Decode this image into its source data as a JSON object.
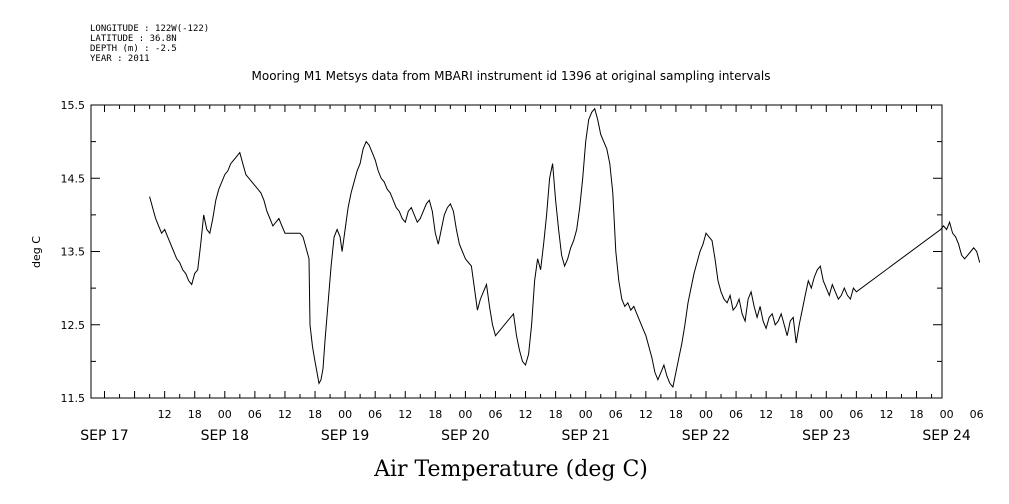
{
  "header": {
    "longitude": "LONGITUDE : 122W(-122)",
    "latitude": "LATITUDE : 36.8N",
    "depth": "DEPTH (m) : -2.5",
    "year": "YEAR : 2011"
  },
  "chart_data": {
    "type": "line",
    "title": "Mooring M1 Metsys data from MBARI instrument id 1396 at original sampling intervals",
    "xlabel": "Air Temperature (deg C)",
    "ylabel": "deg C",
    "ylim": [
      11.5,
      15.5
    ],
    "yticks": [
      11.5,
      12.5,
      13.5,
      14.5,
      15.5
    ],
    "yticks_minor": [
      12.0,
      13.0,
      14.0,
      15.0
    ],
    "x_unit": "hours since SEP 17 00:00 (2011)",
    "xlim": [
      -9,
      175
    ],
    "hour_ticks": [
      {
        "h": 12,
        "label": "12"
      },
      {
        "h": 18,
        "label": "18"
      },
      {
        "h": 24,
        "label": "00"
      },
      {
        "h": 30,
        "label": "06"
      },
      {
        "h": 36,
        "label": "12"
      },
      {
        "h": 42,
        "label": "18"
      },
      {
        "h": 48,
        "label": "00"
      },
      {
        "h": 54,
        "label": "06"
      },
      {
        "h": 60,
        "label": "12"
      },
      {
        "h": 66,
        "label": "18"
      },
      {
        "h": 72,
        "label": "00"
      },
      {
        "h": 78,
        "label": "06"
      },
      {
        "h": 84,
        "label": "12"
      },
      {
        "h": 90,
        "label": "18"
      },
      {
        "h": 96,
        "label": "00"
      },
      {
        "h": 102,
        "label": "06"
      },
      {
        "h": 108,
        "label": "12"
      },
      {
        "h": 114,
        "label": "18"
      },
      {
        "h": 120,
        "label": "00"
      },
      {
        "h": 126,
        "label": "06"
      },
      {
        "h": 132,
        "label": "12"
      },
      {
        "h": 138,
        "label": "18"
      },
      {
        "h": 144,
        "label": "00"
      },
      {
        "h": 150,
        "label": "06"
      },
      {
        "h": 156,
        "label": "12"
      },
      {
        "h": 162,
        "label": "18"
      },
      {
        "h": 168,
        "label": "00"
      },
      {
        "h": 174,
        "label": "06"
      }
    ],
    "date_labels": [
      {
        "h": 0,
        "label": "SEP 17"
      },
      {
        "h": 24,
        "label": "SEP 18"
      },
      {
        "h": 48,
        "label": "SEP 19"
      },
      {
        "h": 72,
        "label": "SEP 20"
      },
      {
        "h": 96,
        "label": "SEP 21"
      },
      {
        "h": 120,
        "label": "SEP 22"
      },
      {
        "h": 144,
        "label": "SEP 23"
      },
      {
        "h": 168,
        "label": "SEP 24"
      }
    ],
    "series": [
      {
        "points": [
          [
            9.0,
            14.25
          ],
          [
            9.6,
            14.1
          ],
          [
            10.2,
            13.95
          ],
          [
            10.8,
            13.85
          ],
          [
            11.4,
            13.75
          ],
          [
            12.0,
            13.8
          ],
          [
            12.6,
            13.7
          ],
          [
            13.2,
            13.6
          ],
          [
            13.8,
            13.5
          ],
          [
            14.4,
            13.4
          ],
          [
            15.0,
            13.35
          ],
          [
            15.6,
            13.25
          ],
          [
            16.2,
            13.2
          ],
          [
            16.8,
            13.1
          ],
          [
            17.4,
            13.05
          ],
          [
            18.0,
            13.2
          ],
          [
            18.6,
            13.25
          ],
          [
            19.2,
            13.6
          ],
          [
            19.8,
            14.0
          ],
          [
            20.4,
            13.8
          ],
          [
            21.0,
            13.75
          ],
          [
            21.6,
            13.95
          ],
          [
            22.2,
            14.2
          ],
          [
            22.8,
            14.35
          ],
          [
            23.4,
            14.45
          ],
          [
            24.0,
            14.55
          ],
          [
            24.6,
            14.6
          ],
          [
            25.2,
            14.7
          ],
          [
            25.8,
            14.75
          ],
          [
            26.4,
            14.8
          ],
          [
            27.0,
            14.85
          ],
          [
            27.6,
            14.7
          ],
          [
            28.2,
            14.55
          ],
          [
            28.8,
            14.5
          ],
          [
            29.4,
            14.45
          ],
          [
            30.0,
            14.4
          ],
          [
            30.6,
            14.35
          ],
          [
            31.2,
            14.3
          ],
          [
            31.8,
            14.2
          ],
          [
            32.4,
            14.05
          ],
          [
            33.0,
            13.95
          ],
          [
            33.6,
            13.85
          ],
          [
            34.2,
            13.9
          ],
          [
            34.8,
            13.95
          ],
          [
            35.4,
            13.85
          ],
          [
            36.0,
            13.75
          ],
          [
            39.0,
            13.75
          ],
          [
            39.6,
            13.7
          ],
          [
            40.2,
            13.55
          ],
          [
            40.8,
            13.4
          ],
          [
            41.0,
            12.5
          ],
          [
            41.5,
            12.2
          ],
          [
            42.0,
            12.0
          ],
          [
            42.4,
            11.85
          ],
          [
            42.8,
            11.7
          ],
          [
            43.2,
            11.75
          ],
          [
            43.6,
            11.9
          ],
          [
            44.0,
            12.3
          ],
          [
            44.6,
            12.8
          ],
          [
            45.2,
            13.3
          ],
          [
            45.8,
            13.7
          ],
          [
            46.4,
            13.8
          ],
          [
            47.0,
            13.7
          ],
          [
            47.4,
            13.5
          ],
          [
            48.0,
            13.8
          ],
          [
            48.6,
            14.1
          ],
          [
            49.2,
            14.3
          ],
          [
            49.8,
            14.45
          ],
          [
            50.4,
            14.6
          ],
          [
            51.0,
            14.7
          ],
          [
            51.6,
            14.9
          ],
          [
            52.2,
            15.0
          ],
          [
            52.8,
            14.95
          ],
          [
            53.4,
            14.85
          ],
          [
            54.0,
            14.75
          ],
          [
            54.6,
            14.6
          ],
          [
            55.2,
            14.5
          ],
          [
            55.8,
            14.45
          ],
          [
            56.4,
            14.35
          ],
          [
            57.0,
            14.3
          ],
          [
            57.6,
            14.2
          ],
          [
            58.2,
            14.1
          ],
          [
            58.8,
            14.05
          ],
          [
            59.4,
            13.95
          ],
          [
            60.0,
            13.9
          ],
          [
            60.6,
            14.05
          ],
          [
            61.2,
            14.1
          ],
          [
            61.8,
            14.0
          ],
          [
            62.4,
            13.9
          ],
          [
            63.0,
            13.95
          ],
          [
            63.6,
            14.05
          ],
          [
            64.2,
            14.15
          ],
          [
            64.8,
            14.2
          ],
          [
            65.4,
            14.05
          ],
          [
            66.0,
            13.75
          ],
          [
            66.6,
            13.6
          ],
          [
            67.2,
            13.8
          ],
          [
            67.8,
            14.0
          ],
          [
            68.4,
            14.1
          ],
          [
            69.0,
            14.15
          ],
          [
            69.6,
            14.05
          ],
          [
            70.2,
            13.8
          ],
          [
            70.8,
            13.6
          ],
          [
            71.4,
            13.5
          ],
          [
            72.0,
            13.4
          ],
          [
            72.6,
            13.35
          ],
          [
            73.2,
            13.3
          ],
          [
            73.8,
            13.0
          ],
          [
            74.4,
            12.7
          ],
          [
            75.0,
            12.85
          ],
          [
            75.6,
            12.95
          ],
          [
            76.2,
            13.05
          ],
          [
            76.8,
            12.75
          ],
          [
            77.4,
            12.5
          ],
          [
            78.0,
            12.35
          ],
          [
            81.6,
            12.65
          ],
          [
            82.2,
            12.35
          ],
          [
            82.8,
            12.15
          ],
          [
            83.4,
            12.0
          ],
          [
            84.0,
            11.95
          ],
          [
            84.6,
            12.1
          ],
          [
            85.2,
            12.5
          ],
          [
            85.8,
            13.1
          ],
          [
            86.4,
            13.4
          ],
          [
            87.0,
            13.25
          ],
          [
            87.6,
            13.6
          ],
          [
            88.2,
            14.0
          ],
          [
            88.8,
            14.5
          ],
          [
            89.4,
            14.7
          ],
          [
            90.0,
            14.2
          ],
          [
            90.6,
            13.8
          ],
          [
            91.2,
            13.45
          ],
          [
            91.8,
            13.3
          ],
          [
            92.4,
            13.4
          ],
          [
            93.0,
            13.55
          ],
          [
            93.6,
            13.65
          ],
          [
            94.2,
            13.8
          ],
          [
            94.8,
            14.1
          ],
          [
            95.4,
            14.5
          ],
          [
            96.0,
            15.0
          ],
          [
            96.6,
            15.3
          ],
          [
            97.2,
            15.4
          ],
          [
            97.8,
            15.45
          ],
          [
            98.4,
            15.3
          ],
          [
            99.0,
            15.1
          ],
          [
            99.6,
            15.0
          ],
          [
            100.2,
            14.9
          ],
          [
            100.8,
            14.7
          ],
          [
            101.4,
            14.3
          ],
          [
            102.0,
            13.5
          ],
          [
            102.6,
            13.1
          ],
          [
            103.2,
            12.85
          ],
          [
            103.8,
            12.75
          ],
          [
            104.4,
            12.8
          ],
          [
            105.0,
            12.7
          ],
          [
            105.6,
            12.75
          ],
          [
            106.2,
            12.65
          ],
          [
            106.8,
            12.55
          ],
          [
            107.4,
            12.45
          ],
          [
            108.0,
            12.35
          ],
          [
            108.6,
            12.2
          ],
          [
            109.2,
            12.05
          ],
          [
            109.8,
            11.85
          ],
          [
            110.4,
            11.75
          ],
          [
            111.0,
            11.85
          ],
          [
            111.6,
            11.95
          ],
          [
            112.2,
            11.8
          ],
          [
            112.8,
            11.7
          ],
          [
            113.4,
            11.65
          ],
          [
            114.0,
            11.85
          ],
          [
            114.6,
            12.05
          ],
          [
            115.2,
            12.25
          ],
          [
            115.8,
            12.5
          ],
          [
            116.4,
            12.8
          ],
          [
            117.0,
            13.0
          ],
          [
            117.6,
            13.2
          ],
          [
            118.2,
            13.35
          ],
          [
            118.8,
            13.5
          ],
          [
            119.4,
            13.6
          ],
          [
            120.0,
            13.75
          ],
          [
            120.6,
            13.7
          ],
          [
            121.2,
            13.65
          ],
          [
            121.8,
            13.4
          ],
          [
            122.4,
            13.1
          ],
          [
            123.0,
            12.95
          ],
          [
            123.6,
            12.85
          ],
          [
            124.2,
            12.8
          ],
          [
            124.8,
            12.9
          ],
          [
            125.4,
            12.7
          ],
          [
            126.0,
            12.75
          ],
          [
            126.6,
            12.85
          ],
          [
            127.2,
            12.65
          ],
          [
            127.8,
            12.55
          ],
          [
            128.4,
            12.85
          ],
          [
            129.0,
            12.95
          ],
          [
            129.6,
            12.75
          ],
          [
            130.2,
            12.6
          ],
          [
            130.8,
            12.75
          ],
          [
            131.4,
            12.55
          ],
          [
            132.0,
            12.45
          ],
          [
            132.6,
            12.6
          ],
          [
            133.2,
            12.65
          ],
          [
            133.8,
            12.5
          ],
          [
            134.4,
            12.55
          ],
          [
            135.0,
            12.65
          ],
          [
            135.6,
            12.5
          ],
          [
            136.2,
            12.35
          ],
          [
            136.8,
            12.55
          ],
          [
            137.4,
            12.6
          ],
          [
            138.0,
            12.25
          ],
          [
            138.6,
            12.5
          ],
          [
            139.2,
            12.7
          ],
          [
            139.8,
            12.9
          ],
          [
            140.4,
            13.1
          ],
          [
            141.0,
            13.0
          ],
          [
            141.6,
            13.15
          ],
          [
            142.2,
            13.25
          ],
          [
            142.8,
            13.3
          ],
          [
            143.4,
            13.1
          ],
          [
            144.0,
            13.0
          ],
          [
            144.6,
            12.9
          ],
          [
            145.2,
            13.05
          ],
          [
            145.8,
            12.95
          ],
          [
            146.4,
            12.85
          ],
          [
            147.0,
            12.9
          ],
          [
            147.6,
            13.0
          ],
          [
            148.2,
            12.9
          ],
          [
            148.8,
            12.85
          ],
          [
            149.4,
            13.0
          ],
          [
            150.0,
            12.95
          ],
          [
            166.8,
            13.8
          ],
          [
            167.4,
            13.85
          ],
          [
            168.0,
            13.8
          ],
          [
            168.6,
            13.9
          ],
          [
            169.2,
            13.75
          ],
          [
            169.8,
            13.7
          ],
          [
            170.4,
            13.6
          ],
          [
            171.0,
            13.45
          ],
          [
            171.6,
            13.4
          ],
          [
            172.2,
            13.45
          ],
          [
            172.8,
            13.5
          ],
          [
            173.4,
            13.55
          ],
          [
            174.0,
            13.5
          ],
          [
            174.6,
            13.35
          ]
        ]
      }
    ]
  }
}
